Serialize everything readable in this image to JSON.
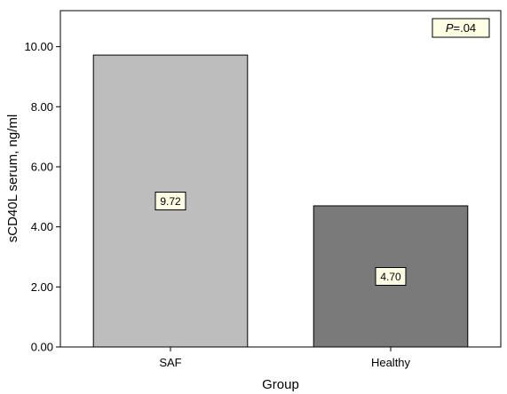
{
  "chart_data": {
    "type": "bar",
    "title": "",
    "xlabel": "Group",
    "ylabel": "sCD40L serum, ng/ml",
    "categories": [
      "SAF",
      "Healthy"
    ],
    "values": [
      9.72,
      4.7
    ],
    "value_labels": [
      "9.72",
      "4.70"
    ],
    "ylim": [
      0,
      11.2
    ],
    "yticks": [
      0,
      2,
      4,
      6,
      8,
      10
    ],
    "ytick_labels": [
      "0.00",
      "2.00",
      "4.00",
      "6.00",
      "8.00",
      "10.00"
    ],
    "grid": false,
    "legend": "none",
    "colors": {
      "bars": [
        "#bdbdbd",
        "#7a7a7a"
      ],
      "label_box": "#ffffe5",
      "annotation_box": "#ffffe5",
      "axis": "#000000"
    },
    "annotation": {
      "prefix": "P",
      "suffix": "=.04",
      "placement": "top-right"
    }
  }
}
